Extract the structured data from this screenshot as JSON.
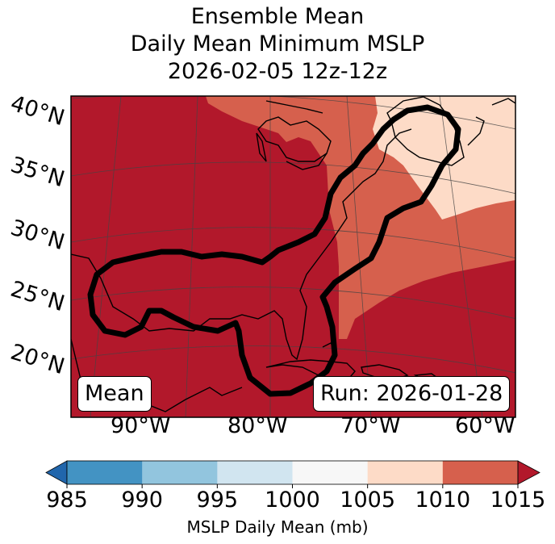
{
  "title": {
    "line1": "Ensemble Mean",
    "line2": "Daily Mean Minimum MSLP",
    "line3": "2026-02-05 12z-12z"
  },
  "map": {
    "lat_labels": [
      "40°N",
      "35°N",
      "30°N",
      "25°N",
      "20°N"
    ],
    "lon_labels": [
      "90°W",
      "80°W",
      "70°W",
      "60°W"
    ],
    "left_box": "Mean",
    "right_box": "Run: 2026-01-28",
    "colors": {
      "range_1010_1015": "#b2182b",
      "range_1005_1010": "#d6604d",
      "range_1000_1005": "#fddbc7",
      "coastline": "#000000",
      "contour": "#000000"
    }
  },
  "colorbar": {
    "label": "MSLP Daily Mean (mb)",
    "ticks": [
      "985",
      "990",
      "995",
      "1000",
      "1005",
      "1010",
      "1015"
    ],
    "colors": [
      "#4393c3",
      "#92c5de",
      "#d1e5f0",
      "#f7f7f7",
      "#fddbc7",
      "#d6604d"
    ],
    "under_color": "#2166ac",
    "over_color": "#b2182b"
  }
}
